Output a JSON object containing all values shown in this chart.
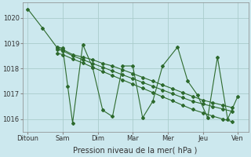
{
  "background_color": "#cce8ee",
  "grid_color": "#aacccc",
  "line_color": "#2d6a2d",
  "xlabels": [
    "Ditoun",
    "Sam",
    "Dim",
    "Mar",
    "Mer",
    "Jeu",
    "Ven"
  ],
  "xlabel": "Pression niveau de la mer( hPa )",
  "ylim": [
    1015.5,
    1020.6
  ],
  "yticks": [
    1016,
    1017,
    1018,
    1019,
    1020
  ],
  "xtick_positions": [
    0,
    1,
    2,
    3,
    4,
    5,
    6
  ],
  "tick_fontsize": 6,
  "xlabel_fontsize": 7,
  "line1_x": [
    0.0,
    0.42,
    0.85,
    1.0,
    1.28,
    1.57,
    1.85,
    2.14,
    2.42,
    2.71,
    3.0,
    3.28,
    3.57,
    3.85,
    4.14,
    4.42,
    4.71,
    5.0,
    5.28,
    5.57,
    5.85
  ],
  "line1_y": [
    1020.35,
    1019.6,
    1018.8,
    1018.75,
    1018.55,
    1018.45,
    1018.35,
    1018.2,
    1018.1,
    1017.95,
    1017.8,
    1017.65,
    1017.5,
    1017.35,
    1017.2,
    1017.05,
    1016.9,
    1016.75,
    1016.65,
    1016.55,
    1016.45
  ],
  "line2_x": [
    0.85,
    1.0,
    1.14,
    1.28,
    1.57,
    1.85,
    2.14,
    2.42,
    2.71,
    3.0,
    3.28,
    3.57,
    3.85,
    4.28,
    4.57,
    4.85,
    5.14,
    5.42,
    5.71,
    6.0
  ],
  "line2_y": [
    1018.85,
    1018.8,
    1017.3,
    1015.85,
    1018.95,
    1018.05,
    1016.35,
    1016.1,
    1018.1,
    1018.1,
    1016.05,
    1016.7,
    1018.1,
    1018.85,
    1017.5,
    1016.95,
    1016.05,
    1018.45,
    1016.0,
    1016.9
  ],
  "line3_x": [
    0.85,
    1.0,
    1.28,
    1.57,
    1.85,
    2.14,
    2.42,
    2.71,
    3.0,
    3.28,
    3.57,
    3.85,
    4.14,
    4.42,
    4.71,
    5.0,
    5.28,
    5.57,
    5.85
  ],
  "line3_y": [
    1018.75,
    1018.7,
    1018.5,
    1018.35,
    1018.2,
    1018.05,
    1017.9,
    1017.75,
    1017.6,
    1017.45,
    1017.3,
    1017.15,
    1017.0,
    1016.85,
    1016.7,
    1016.6,
    1016.5,
    1016.4,
    1016.3
  ],
  "line4_x": [
    0.85,
    1.0,
    1.28,
    1.57,
    1.85,
    2.14,
    2.42,
    2.71,
    3.0,
    3.28,
    3.57,
    3.85,
    4.14,
    4.42,
    4.71,
    5.0,
    5.28,
    5.57,
    5.85
  ],
  "line4_y": [
    1018.6,
    1018.55,
    1018.38,
    1018.22,
    1018.05,
    1017.88,
    1017.72,
    1017.55,
    1017.38,
    1017.22,
    1017.05,
    1016.88,
    1016.72,
    1016.55,
    1016.38,
    1016.25,
    1016.12,
    1016.0,
    1015.9
  ]
}
